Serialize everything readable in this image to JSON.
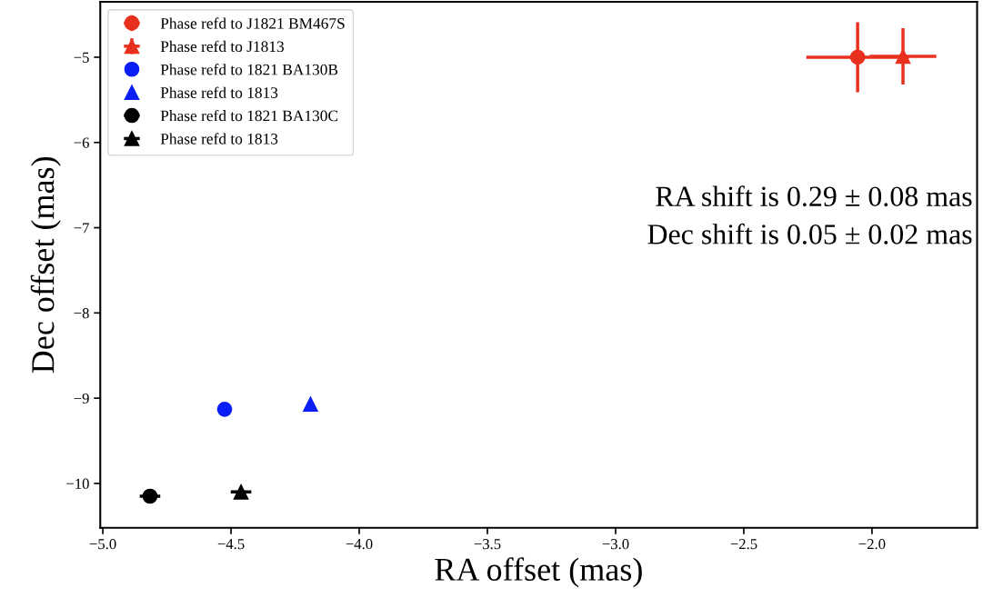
{
  "chart_data": {
    "type": "scatter",
    "xlabel": "RA offset (mas)",
    "ylabel": "Dec offset (mas)",
    "xlim": [
      -5.01,
      -1.59
    ],
    "ylim": [
      -10.52,
      -4.35
    ],
    "xticks": [
      {
        "value": -5.0,
        "label": "−5.0"
      },
      {
        "value": -4.5,
        "label": "−4.5"
      },
      {
        "value": -4.0,
        "label": "−4.0"
      },
      {
        "value": -3.5,
        "label": "−3.5"
      },
      {
        "value": -3.0,
        "label": "−3.0"
      },
      {
        "value": -2.5,
        "label": "−2.5"
      },
      {
        "value": -2.0,
        "label": "−2.0"
      }
    ],
    "yticks": [
      {
        "value": -10,
        "label": "−10"
      },
      {
        "value": -9,
        "label": "−9"
      },
      {
        "value": -8,
        "label": "−8"
      },
      {
        "value": -7,
        "label": "−7"
      },
      {
        "value": -6,
        "label": "−6"
      },
      {
        "value": -5,
        "label": "−5"
      }
    ],
    "legend": "top left",
    "grid": false,
    "series": [
      {
        "name": "Phase refd to J1821 BM467S",
        "color": "#e8301f",
        "marker": "circle",
        "x": [
          -2.056
        ],
        "values": [
          -5.0
        ],
        "errors": [
          0.41
        ],
        "xerrors": [
          0.2
        ]
      },
      {
        "name": "Phase refd to J1813",
        "color": "#e8301f",
        "marker": "triangle",
        "x": [
          -1.879
        ],
        "values": [
          -4.99
        ],
        "errors": [
          0.33
        ],
        "xerrors": [
          0.13
        ]
      },
      {
        "name": "Phase refd to 1821 BA130B",
        "color": "#0a1ef5",
        "marker": "circle",
        "x": [
          -4.525
        ],
        "values": [
          -9.13
        ]
      },
      {
        "name": "Phase refd to 1813",
        "color": "#0a1ef5",
        "marker": "triangle",
        "x": [
          -4.19
        ],
        "values": [
          -9.07
        ]
      },
      {
        "name": "Phase refd to 1821 BA130C",
        "color": "#000000",
        "marker": "circle",
        "x": [
          -4.816
        ],
        "values": [
          -10.15
        ],
        "xerrors": [
          0.04
        ]
      },
      {
        "name": "Phase refd to 1813",
        "color": "#000000",
        "marker": "triangle",
        "x": [
          -4.461
        ],
        "values": [
          -10.1
        ],
        "xerrors": [
          0.04
        ]
      }
    ],
    "annotations": [
      "RA shift is 0.29 ± 0.08 mas",
      "Dec shift is 0.05 ± 0.02 mas"
    ]
  }
}
